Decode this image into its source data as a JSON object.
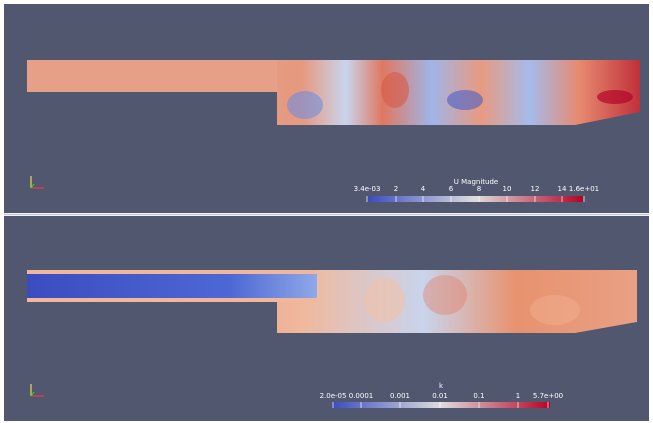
{
  "panels": [
    {
      "legend": {
        "title": "U Magnitude",
        "labels": [
          "3.4e-03",
          "2",
          "4",
          "6",
          "8",
          "10",
          "12",
          "14",
          "1.6e+01"
        ]
      }
    },
    {
      "legend": {
        "title": "k",
        "labels": [
          "2.0e-05",
          "0.0001",
          "0.001",
          "0.01",
          "0.1",
          "1",
          "5.7e+00"
        ]
      }
    }
  ]
}
